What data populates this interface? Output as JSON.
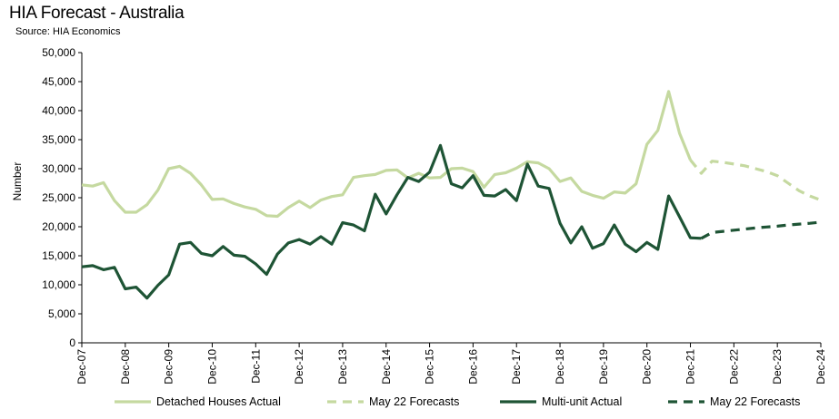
{
  "chart_data": {
    "type": "line",
    "title": "HIA Forecast - Australia",
    "subtitle": "Source: HIA Economics",
    "ylabel": "Number",
    "xlabel": "",
    "ylim": [
      0,
      50000
    ],
    "yticks": [
      "0",
      "5,000",
      "10,000",
      "15,000",
      "20,000",
      "25,000",
      "30,000",
      "35,000",
      "40,000",
      "45,000",
      "50,000"
    ],
    "xticks": [
      "Dec-07",
      "Dec-08",
      "Dec-09",
      "Dec-10",
      "Dec-11",
      "Dec-12",
      "Dec-13",
      "Dec-14",
      "Dec-15",
      "Dec-16",
      "Dec-17",
      "Dec-18",
      "Dec-19",
      "Dec-20",
      "Dec-21",
      "Dec-22",
      "Dec-23",
      "Dec-24"
    ],
    "x_unit": "quarters since Dec-07",
    "series": [
      {
        "name": "Detached Houses Actual",
        "color": "#c5d9a0",
        "style": "solid",
        "x": [
          0,
          1,
          2,
          3,
          4,
          5,
          6,
          7,
          8,
          9,
          10,
          11,
          12,
          13,
          14,
          15,
          16,
          17,
          18,
          19,
          20,
          21,
          22,
          23,
          24,
          25,
          26,
          27,
          28,
          29,
          30,
          31,
          32,
          33,
          34,
          35,
          36,
          37,
          38,
          39,
          40,
          41,
          42,
          43,
          44,
          45,
          46,
          47,
          48,
          49,
          50,
          51,
          52,
          53,
          54,
          55,
          56
        ],
        "values": [
          27200,
          27000,
          27600,
          24500,
          22500,
          22500,
          23800,
          26300,
          30000,
          30400,
          29200,
          27200,
          24700,
          24800,
          24000,
          23400,
          23000,
          21900,
          21800,
          23300,
          24400,
          23300,
          24600,
          25200,
          25500,
          28500,
          28800,
          29000,
          29700,
          29800,
          28400,
          29200,
          28400,
          28500,
          30000,
          30100,
          29500,
          26800,
          29000,
          29300,
          30100,
          31200,
          31000,
          30000,
          27800,
          28400,
          26100,
          25400,
          24900,
          26000,
          25800,
          27400,
          34200,
          36600,
          43300,
          36100,
          31500
        ]
      },
      {
        "name": "May 22 Forecasts",
        "color": "#c5d9a0",
        "style": "dashed",
        "x": [
          56,
          57,
          58,
          59,
          60,
          61,
          62,
          63,
          64,
          65,
          66,
          67,
          68
        ],
        "values": [
          31500,
          29200,
          31300,
          31100,
          30800,
          30500,
          30000,
          29500,
          28800,
          27500,
          26200,
          25300,
          24600
        ]
      },
      {
        "name": "Multi-unit Actual",
        "color": "#1e5435",
        "style": "solid",
        "x": [
          0,
          1,
          2,
          3,
          4,
          5,
          6,
          7,
          8,
          9,
          10,
          11,
          12,
          13,
          14,
          15,
          16,
          17,
          18,
          19,
          20,
          21,
          22,
          23,
          24,
          25,
          26,
          27,
          28,
          29,
          30,
          31,
          32,
          33,
          34,
          35,
          36,
          37,
          38,
          39,
          40,
          41,
          42,
          43,
          44,
          45,
          46,
          47,
          48,
          49,
          50,
          51,
          52,
          53,
          54,
          55,
          56,
          57
        ],
        "values": [
          13100,
          13300,
          12600,
          13000,
          9300,
          9600,
          7700,
          9900,
          11700,
          17000,
          17300,
          15400,
          15000,
          16600,
          15100,
          14900,
          13600,
          11800,
          15300,
          17200,
          17800,
          17000,
          18300,
          17000,
          20700,
          20300,
          19300,
          25600,
          22200,
          25500,
          28500,
          27800,
          29400,
          34000,
          27400,
          26700,
          28800,
          25400,
          25300,
          26400,
          24500,
          30800,
          27000,
          26600,
          20600,
          17200,
          20000,
          16300,
          17100,
          20300,
          17000,
          15700,
          17300,
          16100,
          25300,
          21700,
          18100,
          18000
        ]
      },
      {
        "name": "May 22 Forecasts",
        "color": "#1e5435",
        "style": "dashed",
        "x": [
          57,
          58,
          59,
          60,
          61,
          62,
          63,
          64,
          65,
          66,
          67,
          68
        ],
        "values": [
          18000,
          19000,
          19200,
          19400,
          19600,
          19800,
          19950,
          20100,
          20300,
          20450,
          20600,
          20800
        ]
      }
    ],
    "legend": {
      "placement": "bottom",
      "entries": [
        "Detached Houses Actual",
        "May 22 Forecasts",
        "Multi-unit Actual",
        "May 22 Forecasts"
      ]
    }
  }
}
